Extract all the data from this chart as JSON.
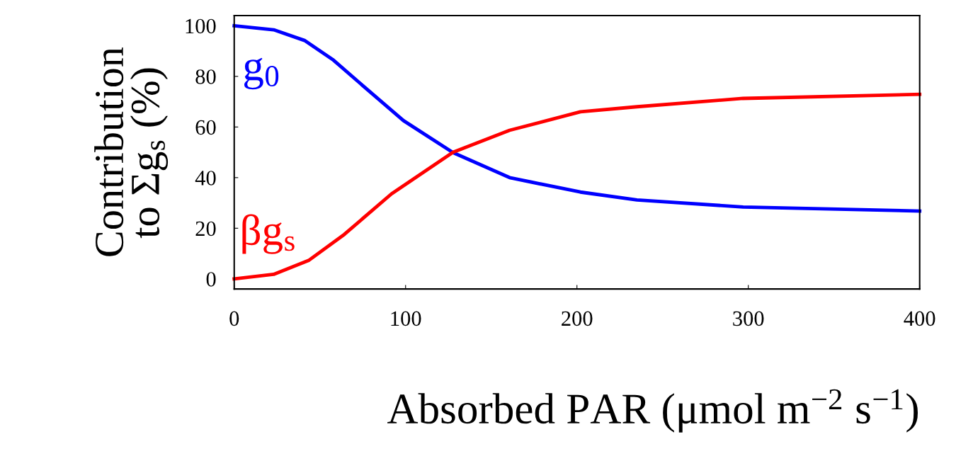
{
  "chart_data": {
    "type": "line",
    "xlabel": "Absorbed PAR (μmol m$^{−2}$ s$^{−1}$)",
    "ylabel": "Contribution\nto Σg$_{s}$ (%)",
    "series": [
      {
        "name": "g$_{0}$",
        "color": "#0000ff",
        "x": [
          0,
          23,
          41,
          57.4,
          78,
          98.8,
          127.7,
          160.7,
          202,
          235,
          297,
          400
        ],
        "values": [
          100,
          98.4,
          94.2,
          86.7,
          74.6,
          62.5,
          49.9,
          40,
          34.3,
          31.2,
          28.4,
          26.8
        ]
      },
      {
        "name": "βg$_{s}$",
        "color": "#ff0000",
        "x": [
          0,
          23,
          43.7,
          64.3,
          91.8,
          127.7,
          160.7,
          202,
          235,
          297,
          400
        ],
        "values": [
          0,
          1.8,
          7.4,
          17.6,
          33.6,
          50,
          58.7,
          66,
          68,
          71.3,
          72.9
        ]
      }
    ],
    "xlim": [
      0,
      400
    ],
    "xticks": [
      0,
      100,
      200,
      300,
      400
    ],
    "ylim": [
      -4,
      104
    ],
    "yticks": [
      0,
      20,
      40,
      60,
      80,
      100
    ],
    "grid": false,
    "legend": false,
    "marker": "none",
    "line_style": "solid"
  }
}
